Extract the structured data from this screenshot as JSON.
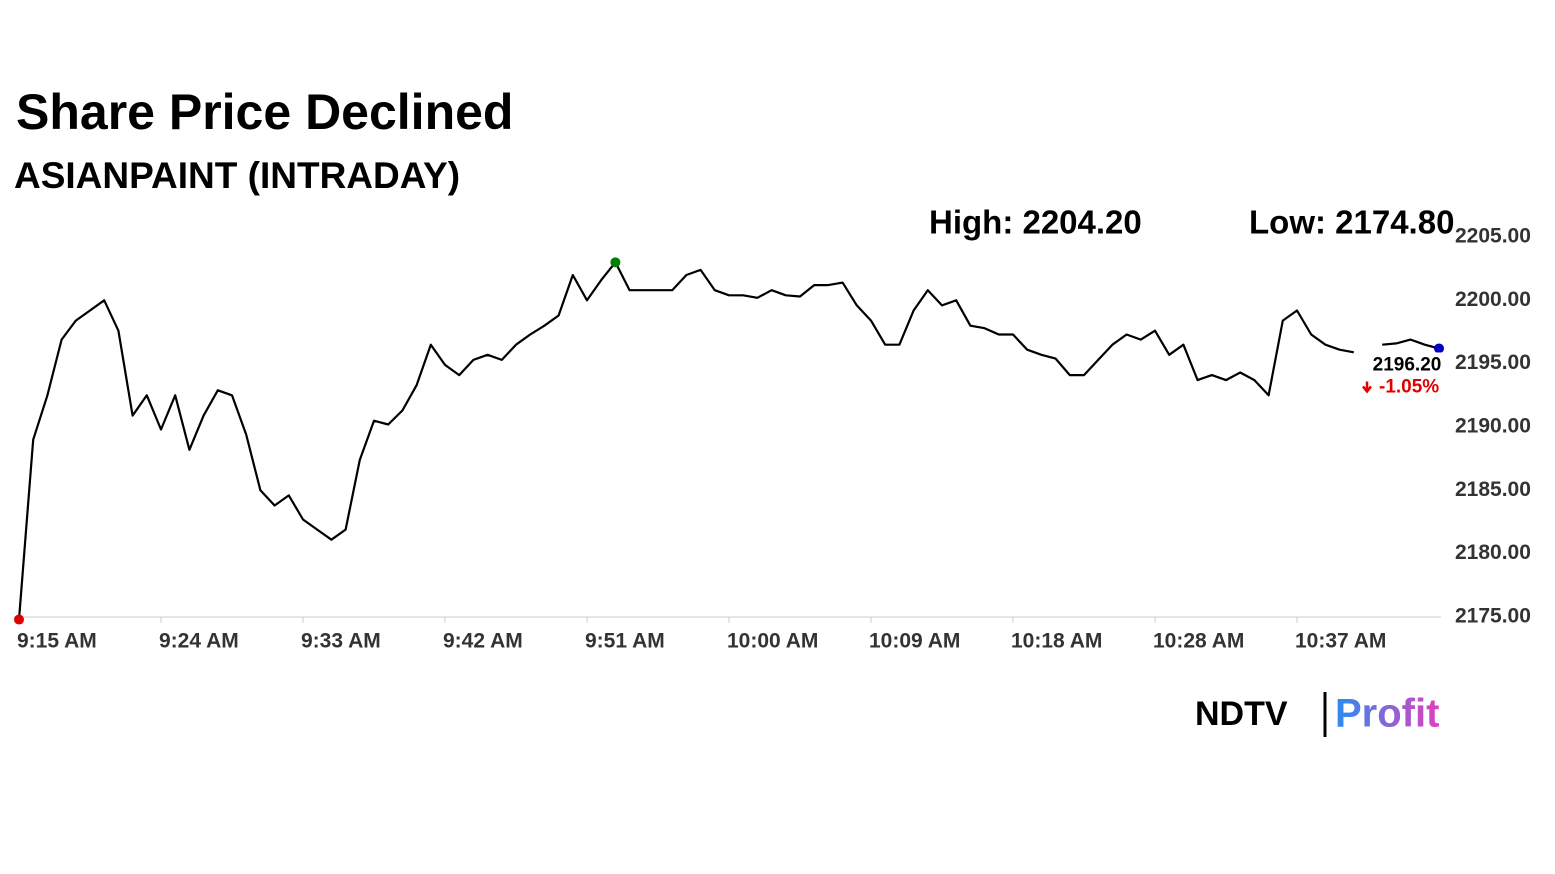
{
  "chart_data": {
    "type": "line",
    "title": "Share Price Declined",
    "subtitle": "ASIANPAINT (INTRADAY)",
    "high_label": "High: 2204.20",
    "low_label": "Low: 2174.80",
    "last_label": "2196.20",
    "change_label": "-1.05%",
    "brand": {
      "left": "NDTV",
      "right": "Profit"
    },
    "categories": [
      "9:15 AM",
      null,
      null,
      null,
      null,
      null,
      null,
      null,
      null,
      null,
      "9:24 AM",
      null,
      null,
      null,
      null,
      null,
      null,
      null,
      null,
      null,
      "9:33 AM",
      null,
      null,
      null,
      null,
      null,
      null,
      null,
      null,
      null,
      "9:42 AM",
      null,
      null,
      null,
      null,
      null,
      null,
      null,
      null,
      null,
      "9:51 AM",
      null,
      null,
      null,
      null,
      null,
      null,
      null,
      null,
      null,
      "10:00 AM",
      null,
      null,
      null,
      null,
      null,
      null,
      null,
      null,
      null,
      "10:09 AM",
      null,
      null,
      null,
      null,
      null,
      null,
      null,
      null,
      null,
      "10:18 AM",
      null,
      null,
      null,
      null,
      null,
      null,
      null,
      null,
      null,
      "10:28 AM",
      null,
      null,
      null,
      null,
      null,
      null,
      null,
      null,
      null,
      "10:37 AM",
      null,
      null,
      null,
      null,
      null,
      null,
      null,
      null,
      null,
      null
    ],
    "series": [
      {
        "name": "ASIANPAINT",
        "color": "#000000",
        "values": [
          2174.8,
          2189,
          2192.5,
          2196.9,
          2198.4,
          2199.2,
          2200,
          2197.6,
          2190.9,
          2192.5,
          2189.8,
          2192.5,
          2188.2,
          2190.9,
          2192.9,
          2192.5,
          2189.4,
          2185,
          2183.8,
          2184.6,
          2182.7,
          2181.9,
          2181.1,
          2181.9,
          2187.4,
          2190.5,
          2190.2,
          2191.3,
          2193.3,
          2196.5,
          2194.9,
          2194.1,
          2195.3,
          2195.7,
          2195.3,
          2196.5,
          2197.3,
          2198,
          2198.8,
          2202,
          2200,
          2201.6,
          2203,
          2200.8,
          2200.8,
          2200.8,
          2200.8,
          2202,
          2202.4,
          2200.8,
          2200.4,
          2200.4,
          2200.2,
          2200.8,
          2200.4,
          2200.3,
          2201.2,
          2201.2,
          2201.4,
          2199.6,
          2198.4,
          2196.5,
          2196.5,
          2199.2,
          2200.8,
          2199.6,
          2200,
          2198,
          2197.8,
          2197.3,
          2197.3,
          2196.1,
          2195.7,
          2195.4,
          2194.1,
          2194.1,
          2195.3,
          2196.5,
          2197.3,
          2196.9,
          2197.6,
          2195.7,
          2196.5,
          2193.7,
          2194.1,
          2193.7,
          2194.3,
          2193.7,
          2192.5,
          2198.4,
          2199.2,
          2197.3,
          2196.5,
          2196.1,
          2195.9,
          null,
          2196.5,
          2196.6,
          2196.9,
          2196.5,
          2196.2
        ]
      }
    ],
    "ylim": [
      2175,
      2205
    ],
    "yticks": [
      {
        "value": 2175,
        "label": "2175.00"
      },
      {
        "value": 2180,
        "label": "2180.00"
      },
      {
        "value": 2185,
        "label": "2185.00"
      },
      {
        "value": 2190,
        "label": "2190.00"
      },
      {
        "value": 2195,
        "label": "2195.00"
      },
      {
        "value": 2200,
        "label": "2200.00"
      },
      {
        "value": 2205,
        "label": "2205.00"
      }
    ],
    "grid": false,
    "marker_colors": {
      "low": "#e00000",
      "high": "#008000",
      "last": "#0000c0"
    },
    "change_color": "#e00000"
  }
}
